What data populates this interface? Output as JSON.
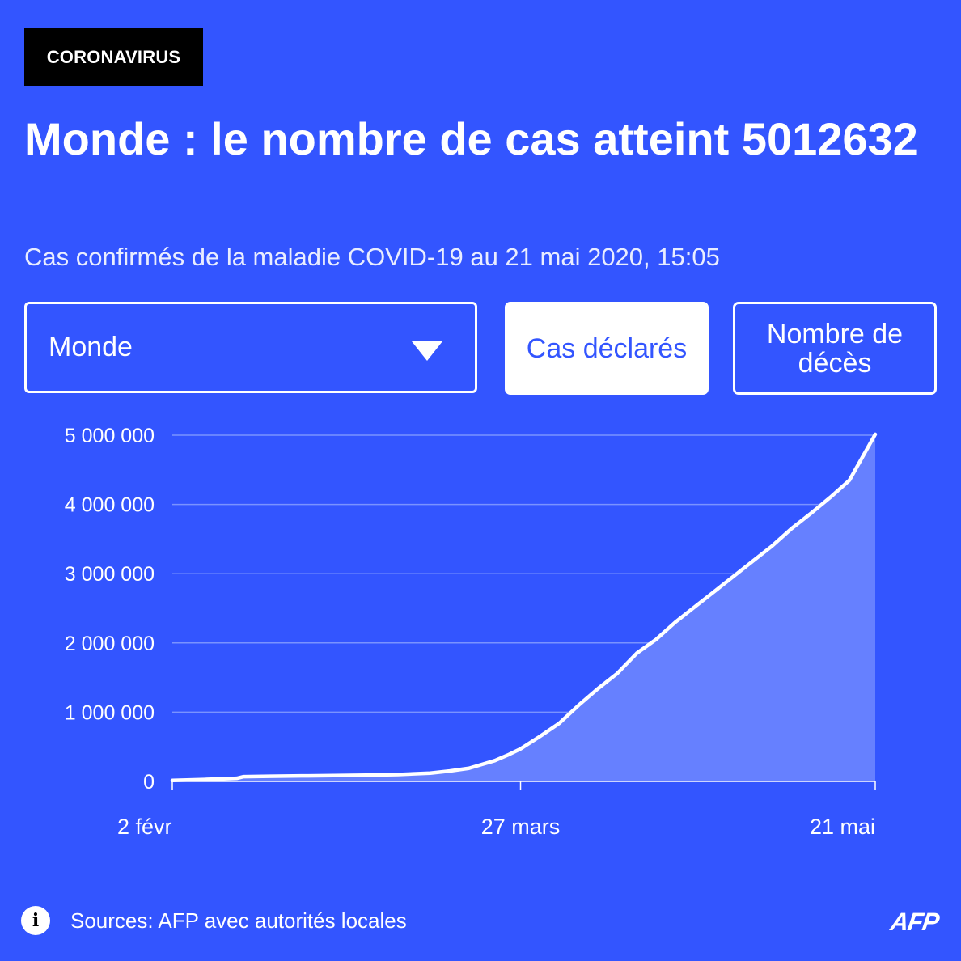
{
  "tag": "CORONAVIRUS",
  "title": "Monde : le nombre de cas atteint 5012632",
  "subtitle": "Cas confirmés de la maladie COVID-19 au 21 mai 2020, 15:05",
  "controls": {
    "region_select": {
      "value": "Monde"
    },
    "buttons": [
      {
        "label": "Cas déclarés",
        "active": true
      },
      {
        "label": "Nombre de décès",
        "active": false
      }
    ]
  },
  "chart_data": {
    "type": "area",
    "title": "",
    "xlabel": "",
    "ylabel": "",
    "ylim": [
      0,
      5000000
    ],
    "y_ticks": [
      0,
      1000000,
      2000000,
      3000000,
      4000000,
      5000000
    ],
    "y_tick_labels": [
      "0",
      "1 000 000",
      "2 000 000",
      "3 000 000",
      "4 000 000",
      "5 000 000"
    ],
    "x_ticks": [
      {
        "x": 0,
        "label": "2 févr"
      },
      {
        "x": 54,
        "label": "27 mars"
      },
      {
        "x": 109,
        "label": "21 mai"
      }
    ],
    "x_date_range": [
      "2 févr",
      "21 mai"
    ],
    "grid": true,
    "colors": {
      "line": "#ffffff",
      "fill": "#6680ff",
      "grid": "#7a93ff"
    },
    "series": [
      {
        "name": "",
        "points": [
          [
            0,
            14000
          ],
          [
            5,
            28000
          ],
          [
            10,
            45000
          ],
          [
            11,
            68000
          ],
          [
            15,
            75000
          ],
          [
            20,
            80000
          ],
          [
            25,
            84000
          ],
          [
            30,
            90000
          ],
          [
            35,
            100000
          ],
          [
            40,
            120000
          ],
          [
            43,
            150000
          ],
          [
            46,
            190000
          ],
          [
            48,
            245000
          ],
          [
            50,
            300000
          ],
          [
            52,
            380000
          ],
          [
            54,
            470000
          ],
          [
            57,
            650000
          ],
          [
            60,
            840000
          ],
          [
            63,
            1100000
          ],
          [
            66,
            1340000
          ],
          [
            69,
            1560000
          ],
          [
            72,
            1850000
          ],
          [
            75,
            2050000
          ],
          [
            78,
            2300000
          ],
          [
            81,
            2520000
          ],
          [
            84,
            2740000
          ],
          [
            87,
            2960000
          ],
          [
            90,
            3180000
          ],
          [
            93,
            3400000
          ],
          [
            96,
            3650000
          ],
          [
            99,
            3870000
          ],
          [
            102,
            4100000
          ],
          [
            105,
            4350000
          ],
          [
            109,
            5012632
          ]
        ]
      }
    ]
  },
  "footer": {
    "info_icon": "info-icon",
    "source": "Sources: AFP avec autorités locales",
    "logo": "AFP"
  }
}
